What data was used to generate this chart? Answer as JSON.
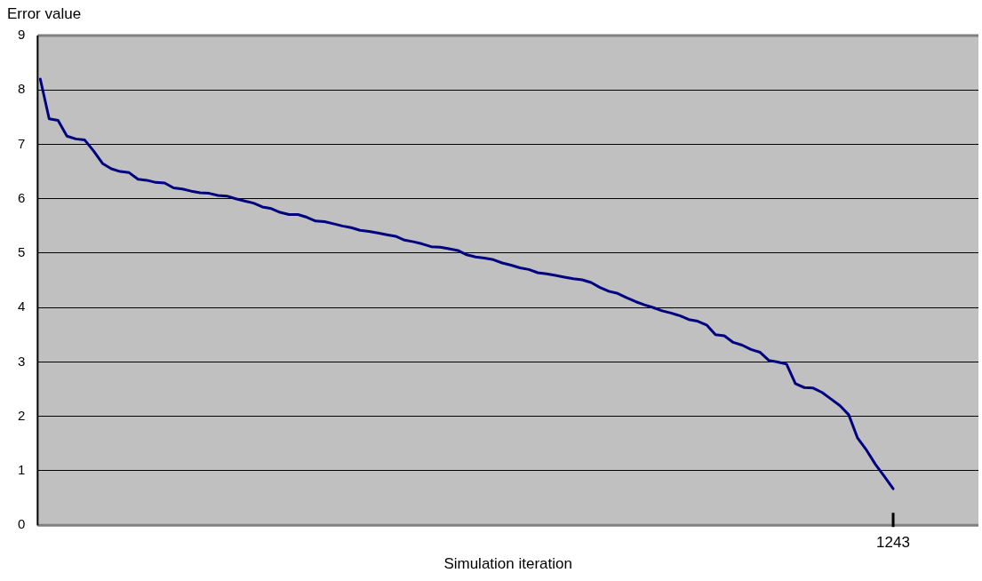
{
  "chart_data": {
    "type": "line",
    "xlabel": "Simulation iteration",
    "ylabel": "Error value",
    "annotations": [
      "1243"
    ],
    "categories": [
      null,
      null,
      null,
      null,
      null,
      null,
      null,
      null,
      null,
      null,
      null,
      null,
      null,
      null,
      null,
      null,
      null,
      null,
      null,
      null,
      null,
      null,
      null,
      null,
      null,
      null,
      null,
      null,
      null,
      null,
      null,
      null,
      null,
      null,
      null,
      null,
      null,
      null,
      null,
      null,
      null,
      null,
      null,
      null,
      null,
      null,
      null,
      null,
      null,
      null,
      null,
      null,
      null,
      null,
      null,
      null,
      null,
      null,
      null,
      null,
      null,
      null,
      null,
      null,
      null,
      null,
      null,
      null,
      null,
      null,
      null,
      null,
      null,
      null,
      null,
      null,
      null,
      null,
      null,
      null,
      null,
      null,
      null,
      null,
      null,
      null,
      null,
      null,
      null,
      null,
      null,
      null,
      null,
      null,
      null,
      null,
      null
    ],
    "ylim": [
      0,
      9
    ],
    "yticks": [
      0,
      1,
      2,
      3,
      4,
      5,
      6,
      7,
      8,
      9
    ],
    "grid": "y",
    "legend": false,
    "marker": "none",
    "line_style": "solid",
    "series": [
      {
        "color": "#000080",
        "values": [
          8.2,
          7.47,
          7.44,
          7.15,
          7.1,
          7.08,
          6.88,
          6.65,
          6.55,
          6.5,
          6.48,
          6.36,
          6.34,
          6.3,
          6.29,
          6.2,
          6.18,
          6.14,
          6.11,
          6.1,
          6.06,
          6.05,
          6.0,
          5.96,
          5.92,
          5.85,
          5.82,
          5.75,
          5.71,
          5.71,
          5.66,
          5.59,
          5.58,
          5.54,
          5.5,
          5.47,
          5.42,
          5.4,
          5.37,
          5.34,
          5.31,
          5.24,
          5.21,
          5.17,
          5.12,
          5.11,
          5.08,
          5.05,
          4.97,
          4.93,
          4.91,
          4.88,
          4.82,
          4.78,
          4.73,
          4.7,
          4.64,
          4.62,
          4.59,
          4.56,
          4.53,
          4.51,
          4.46,
          4.37,
          4.3,
          4.26,
          4.18,
          4.11,
          4.05,
          4.0,
          3.94,
          3.9,
          3.85,
          3.78,
          3.75,
          3.68,
          3.5,
          3.48,
          3.36,
          3.31,
          3.23,
          3.18,
          3.03,
          3.0,
          2.96,
          2.6,
          2.53,
          2.52,
          2.44,
          2.32,
          2.2,
          2.03,
          1.6,
          1.38,
          1.12,
          0.9,
          0.67
        ]
      }
    ]
  }
}
